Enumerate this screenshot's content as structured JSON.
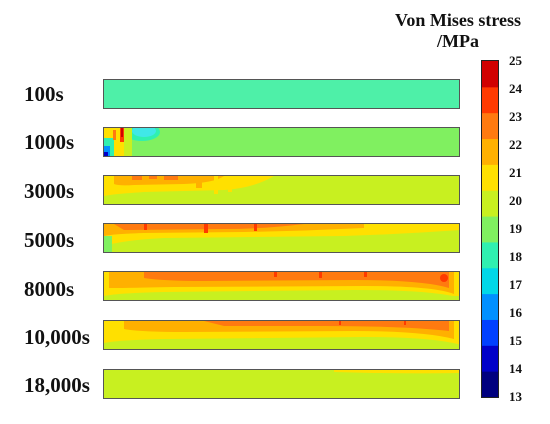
{
  "legend": {
    "title_line1": "Von Mises stress",
    "title_line2": "/MPa",
    "ticks": [
      "25",
      "24",
      "23",
      "22",
      "21",
      "20",
      "19",
      "18",
      "17",
      "16",
      "15",
      "14",
      "13"
    ],
    "colors": [
      "#00007f",
      "#0000c8",
      "#0040ff",
      "#0090ff",
      "#00d8e8",
      "#30f0b0",
      "#80f060",
      "#c8f020",
      "#ffe000",
      "#ffb000",
      "#ff7a10",
      "#ff3a00",
      "#d00000"
    ]
  },
  "snapshots": [
    {
      "time": "100s"
    },
    {
      "time": "1000s"
    },
    {
      "time": "3000s"
    },
    {
      "time": "5000s"
    },
    {
      "time": "8000s"
    },
    {
      "time": "10,000s"
    },
    {
      "time": "18,000s"
    }
  ]
}
